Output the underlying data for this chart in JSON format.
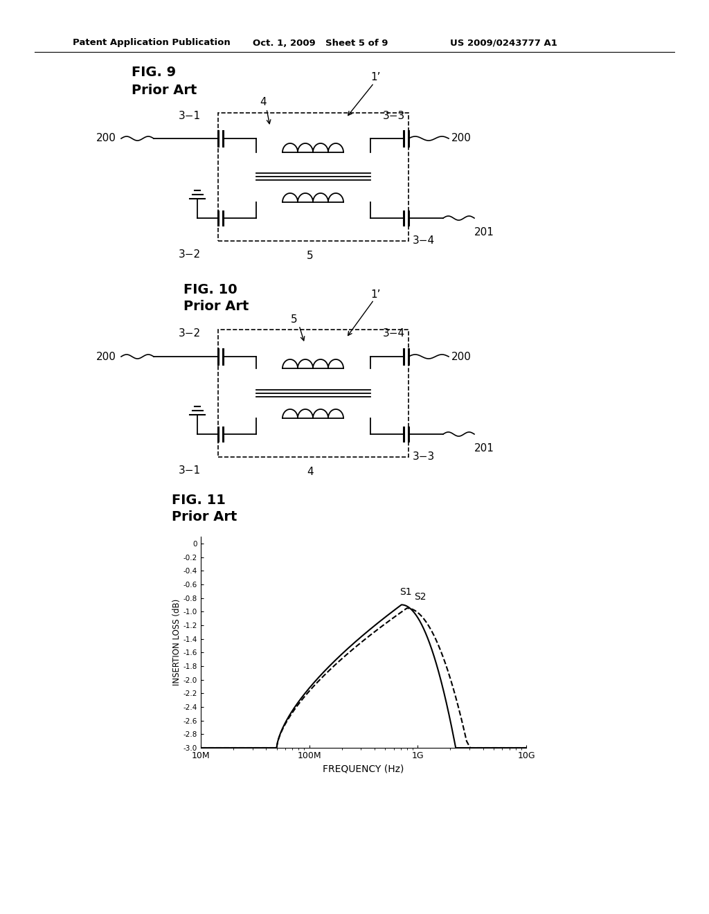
{
  "bg_color": "#ffffff",
  "header_text": "Patent Application Publication",
  "header_date": "Oct. 1, 2009",
  "header_sheet": "Sheet 5 of 9",
  "header_patent": "US 2009/0243777 A1",
  "fig9_title": "FIG. 9",
  "fig9_subtitle": "Prior Art",
  "fig10_title": "FIG. 10",
  "fig10_subtitle": "Prior Art",
  "fig11_title": "FIG. 11",
  "fig11_subtitle": "Prior Art",
  "graph_xlabel": "FREQUENCY (Hz)",
  "graph_ylabel": "INSERTION LOSS (dB)",
  "graph_yticks": [
    0,
    -0.2,
    -0.4,
    -0.6,
    -0.8,
    -1.0,
    -1.2,
    -1.4,
    -1.6,
    -1.8,
    -2.0,
    -2.2,
    -2.4,
    -2.6,
    -2.8,
    -3.0
  ],
  "graph_xtick_labels": [
    "10M",
    "100M",
    "1G",
    "10G"
  ],
  "s1_label": "S1",
  "s2_label": "S2"
}
